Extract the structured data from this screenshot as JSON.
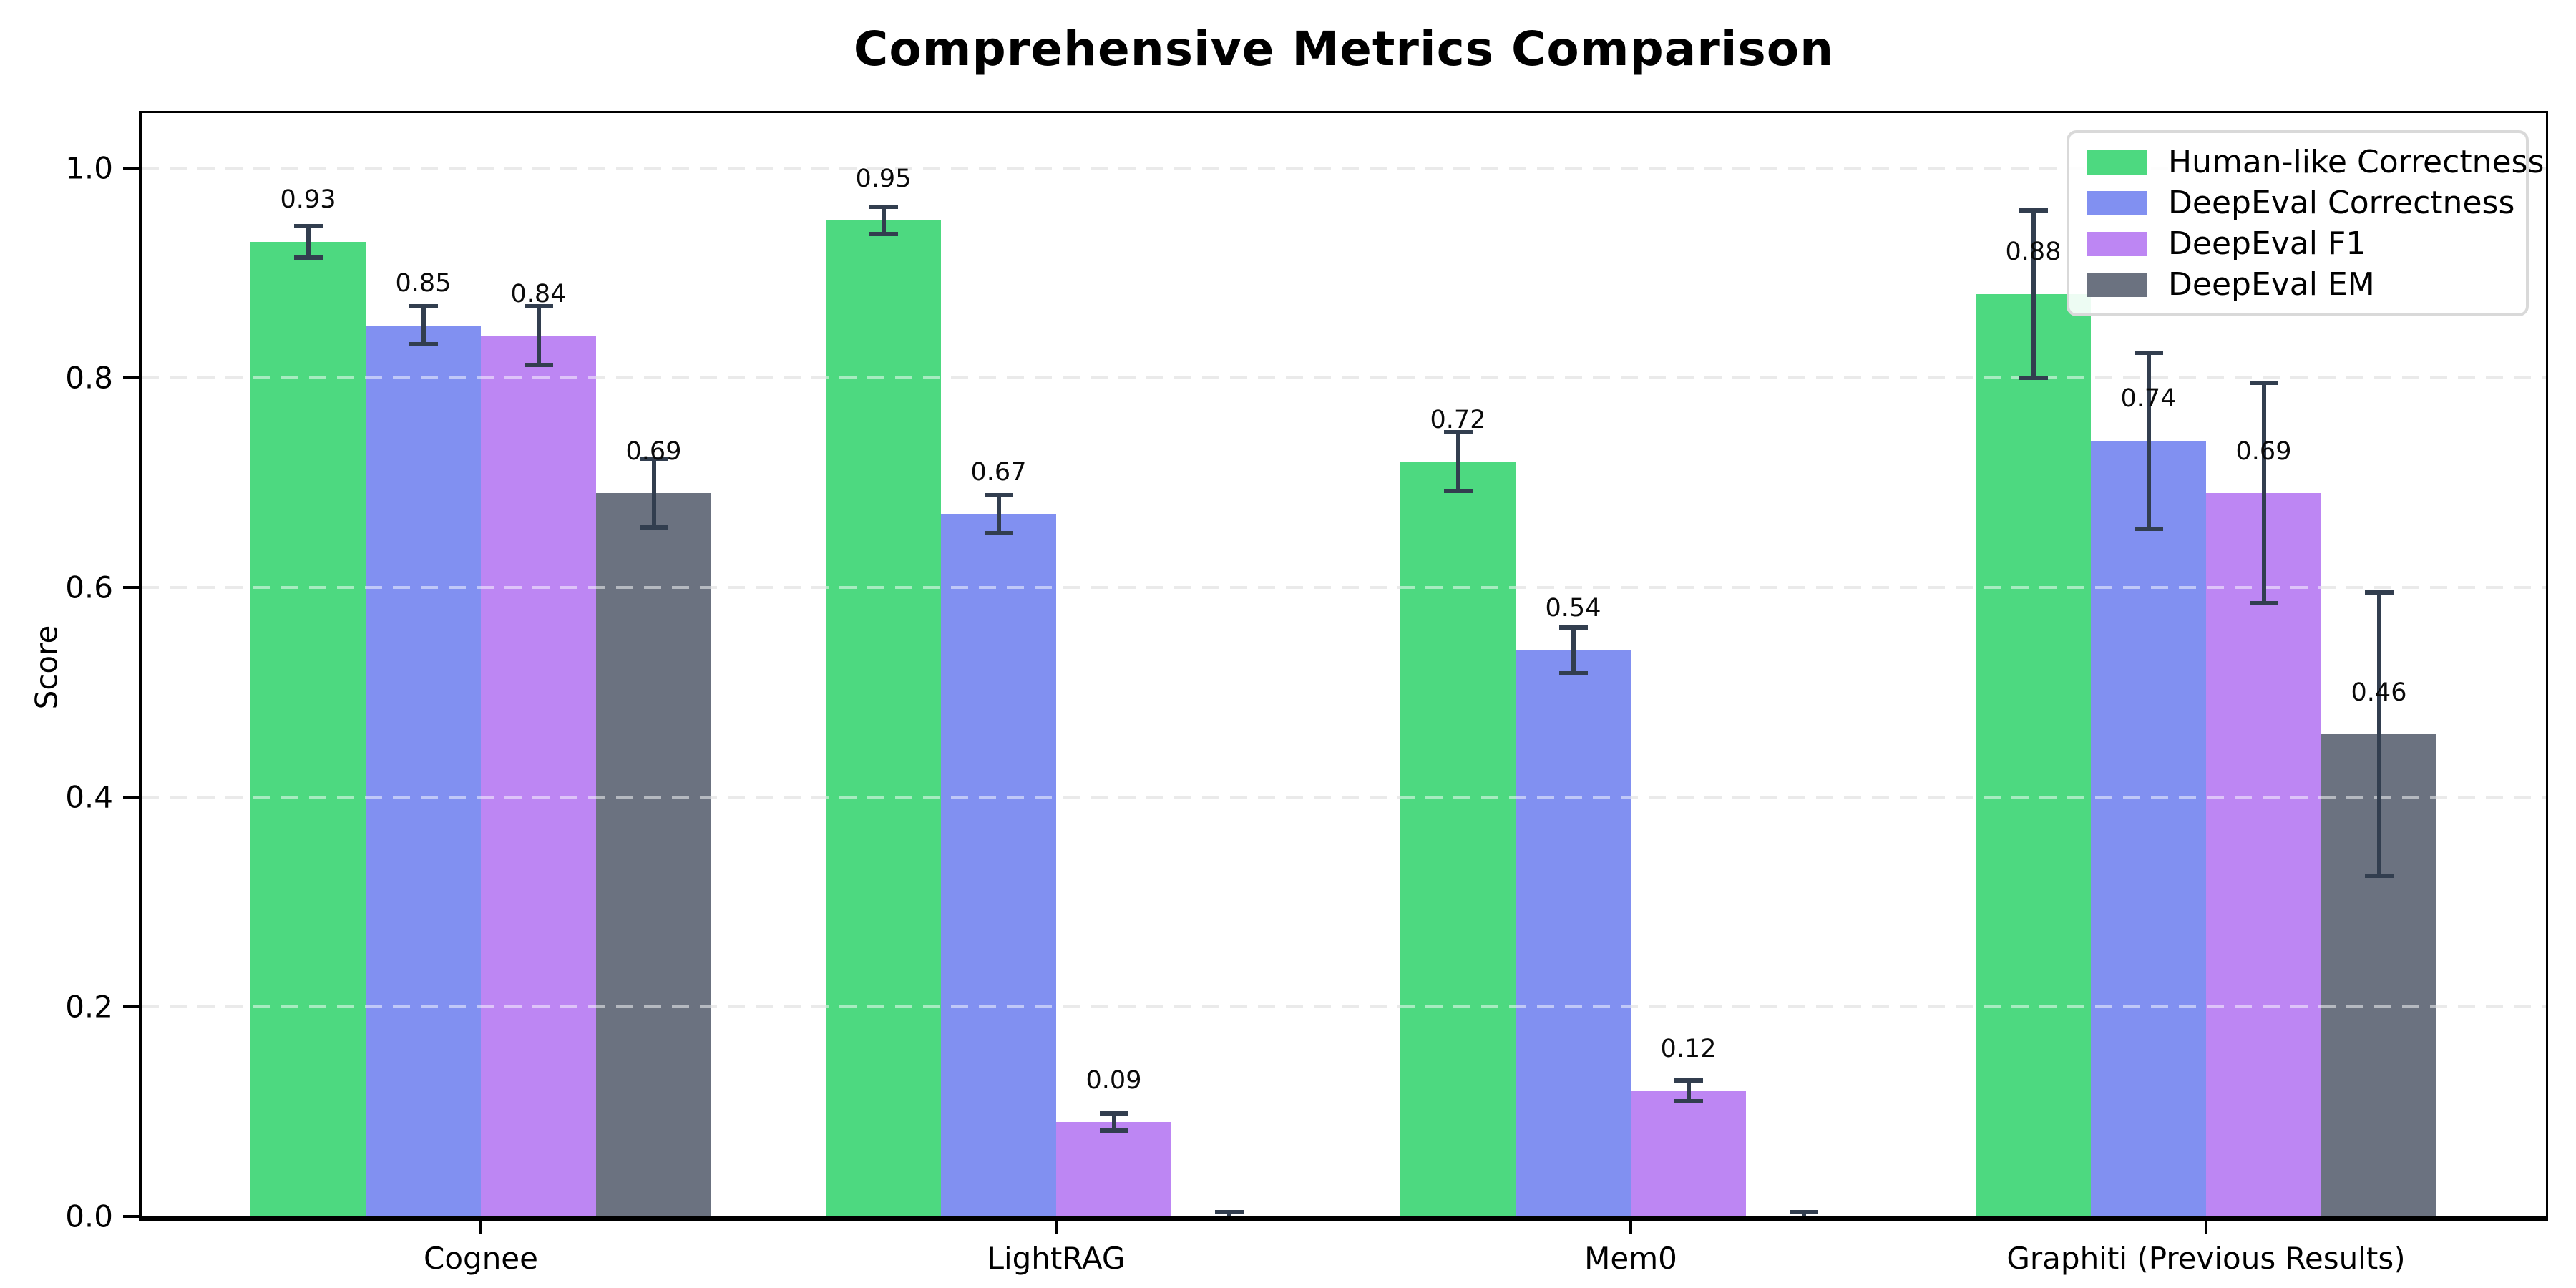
{
  "chart_data": {
    "type": "bar",
    "title": "Comprehensive Metrics Comparison",
    "ylabel": "Score",
    "xlabel": "",
    "categories": [
      "Cognee",
      "LightRAG",
      "Mem0",
      "Graphiti (Previous Results)"
    ],
    "series": [
      {
        "name": "Human-like Correctness",
        "color": "#4dd980",
        "values": [
          0.93,
          0.95,
          0.72,
          0.88
        ],
        "errors": [
          0.015,
          0.013,
          0.028,
          0.08
        ],
        "value_labels": [
          "0.93",
          "0.95",
          "0.72",
          "0.88"
        ]
      },
      {
        "name": "DeepEval Correctness",
        "color": "#8190f1",
        "values": [
          0.85,
          0.67,
          0.54,
          0.74
        ],
        "errors": [
          0.018,
          0.018,
          0.022,
          0.084
        ],
        "value_labels": [
          "0.85",
          "0.67",
          "0.54",
          "0.74"
        ]
      },
      {
        "name": "DeepEval F1",
        "color": "#bd86f3",
        "values": [
          0.84,
          0.09,
          0.12,
          0.69
        ],
        "errors": [
          0.028,
          0.008,
          0.01,
          0.105
        ],
        "value_labels": [
          "0.84",
          "0.09",
          "0.12",
          "0.69"
        ]
      },
      {
        "name": "DeepEval EM",
        "color": "#6b7280",
        "values": [
          0.69,
          0.0,
          0.0,
          0.46
        ],
        "errors": [
          0.033,
          0.004,
          0.004,
          0.135
        ],
        "value_labels": [
          "0.69",
          "",
          "",
          "0.46"
        ]
      }
    ],
    "ylim": [
      0.0,
      1.05
    ],
    "ytick_labels": [
      "0.0",
      "0.2",
      "0.4",
      "0.6",
      "0.8",
      "1.0"
    ],
    "ytick_values": [
      0.0,
      0.2,
      0.4,
      0.6,
      0.8,
      1.0
    ],
    "grid": "horizontal-dashed",
    "gridline_color": "#d4d4d4",
    "legend": {
      "position": "upper right",
      "entries": [
        "Human-like Correctness",
        "DeepEval Correctness",
        "DeepEval F1",
        "DeepEval EM"
      ]
    },
    "error_bar_color": "#323e4f",
    "axis_color": "#000000",
    "background_color": "#ffffff"
  }
}
